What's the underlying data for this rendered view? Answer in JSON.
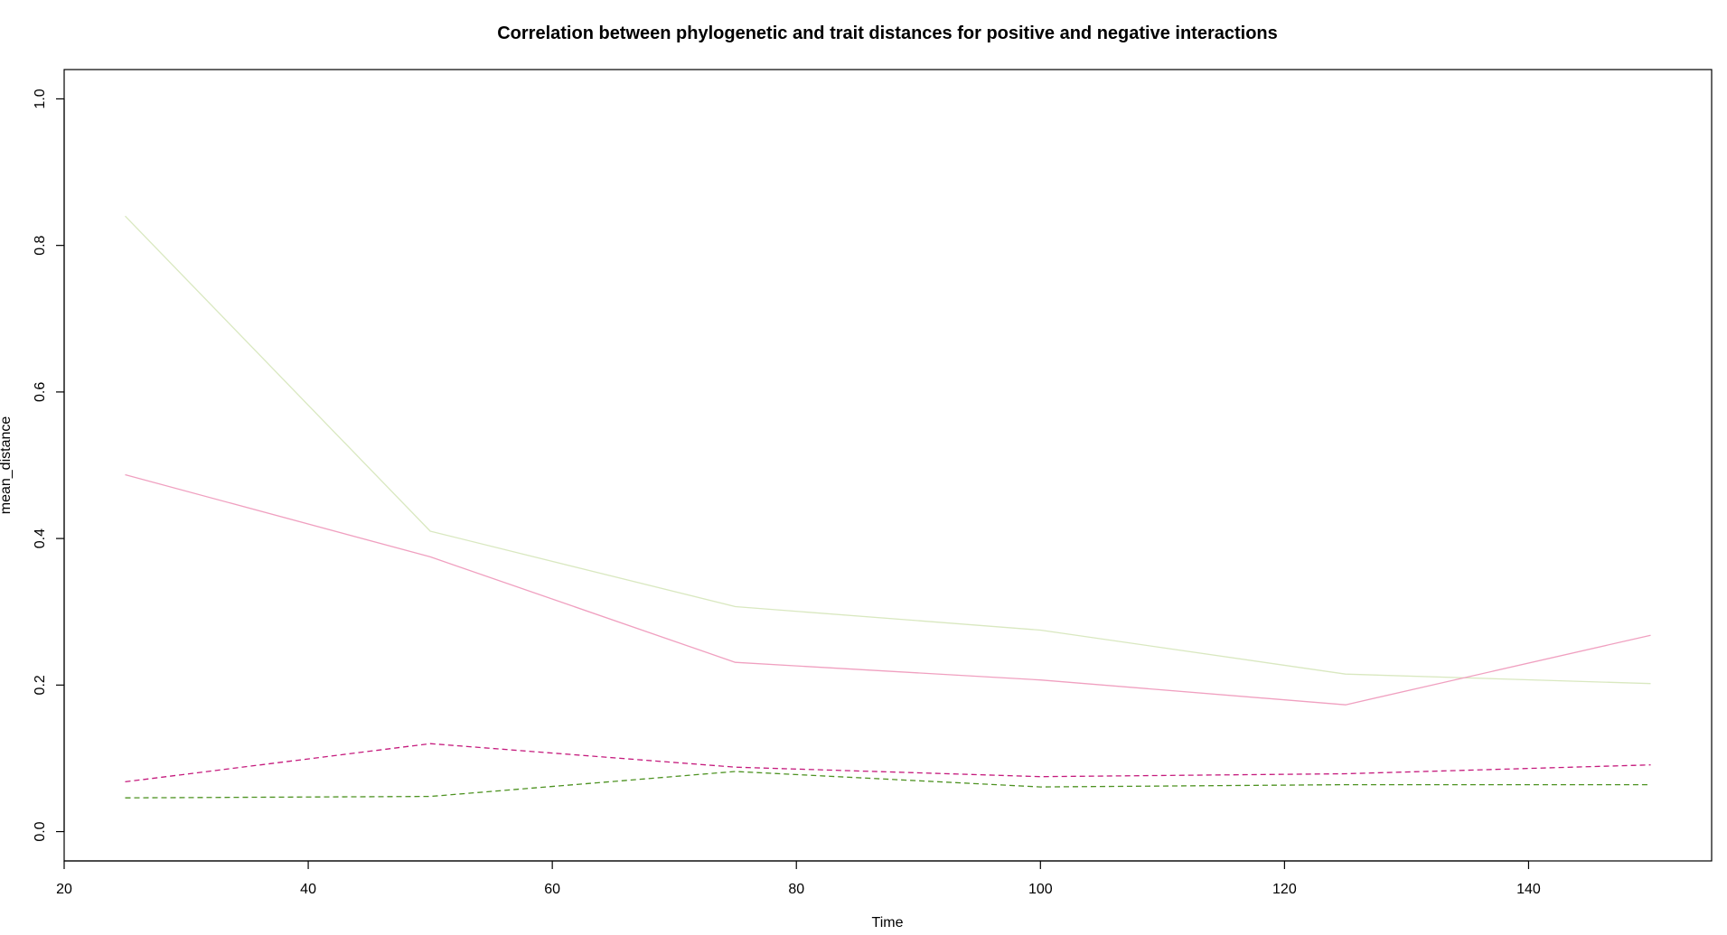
{
  "chart_data": {
    "type": "line",
    "title": "Correlation between phylogenetic and trait distances for positive and negative interactions",
    "xlabel": "Time",
    "ylabel": "mean_distance",
    "xlim": [
      20,
      155
    ],
    "ylim": [
      -0.04,
      1.04
    ],
    "x_ticks": [
      20,
      40,
      60,
      80,
      100,
      120,
      140
    ],
    "y_ticks": [
      0.0,
      0.2,
      0.4,
      0.6,
      0.8,
      1.0
    ],
    "x_tick_labels": [
      "20",
      "40",
      "60",
      "80",
      "100",
      "120",
      "140"
    ],
    "y_tick_labels": [
      "0.0",
      "0.2",
      "0.4",
      "0.6",
      "0.8",
      "1.0"
    ],
    "grid": false,
    "legend": "none",
    "x": [
      25,
      50,
      75,
      100,
      125,
      150
    ],
    "series": [
      {
        "values": [
          0.84,
          0.41,
          0.307,
          0.275,
          0.215,
          0.202
        ],
        "color": "#d9e8c0",
        "dash": "solid"
      },
      {
        "values": [
          0.487,
          0.375,
          0.231,
          0.207,
          0.173,
          0.268
        ],
        "color": "#f0a0c0",
        "dash": "solid"
      },
      {
        "values": [
          0.068,
          0.12,
          0.088,
          0.075,
          0.079,
          0.091
        ],
        "color": "#c51b7d",
        "dash": "dashed"
      },
      {
        "values": [
          0.046,
          0.048,
          0.082,
          0.061,
          0.064,
          0.064
        ],
        "color": "#4d9221",
        "dash": "dashed"
      }
    ]
  }
}
